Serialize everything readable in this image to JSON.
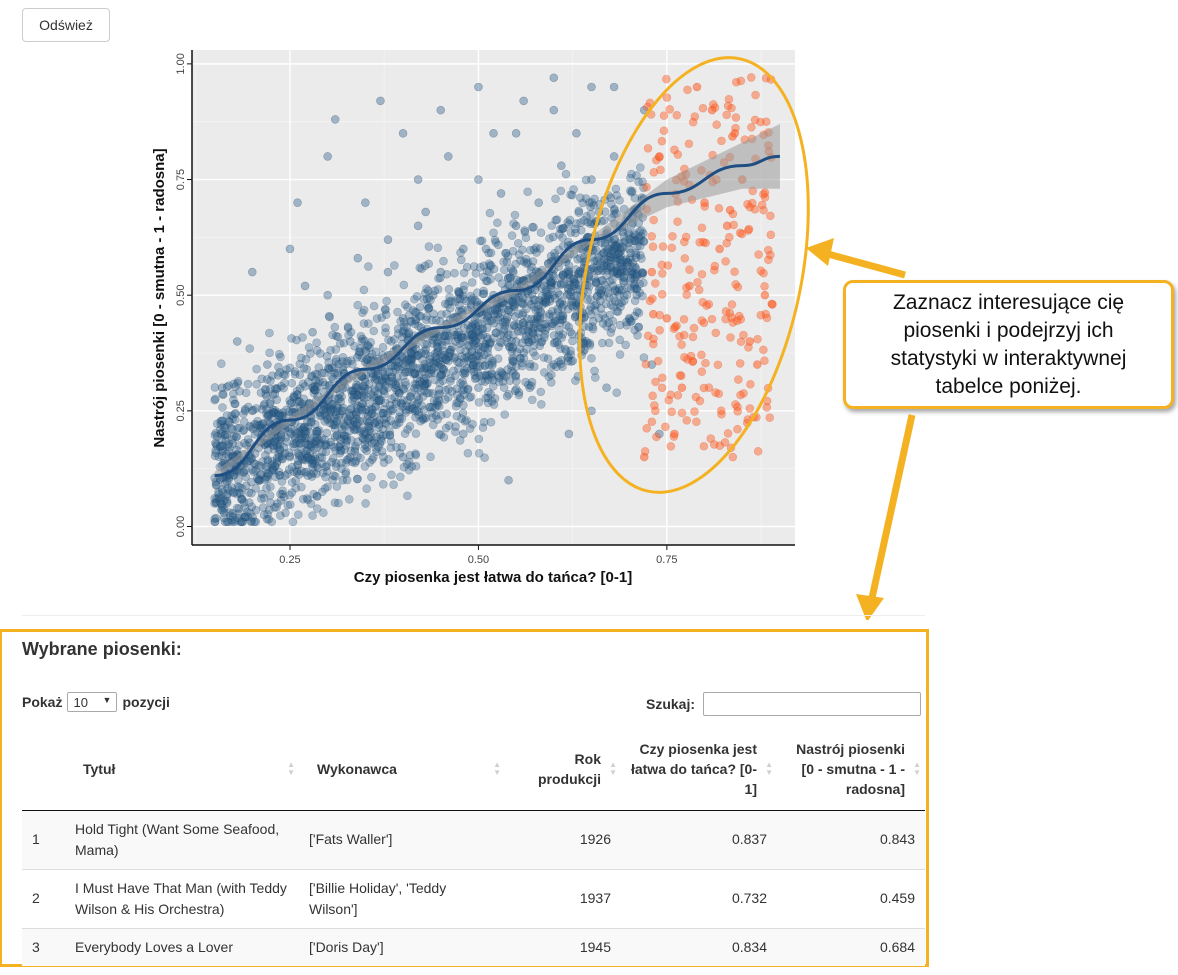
{
  "refresh_button": {
    "label": "Odśwież"
  },
  "callout": {
    "text": "Zaznacz interesujące cię piosenki i podejrzyj ich statystyki w interaktywnej tabelce poniżej."
  },
  "table_section": {
    "title": "Wybrane piosenki:",
    "length": {
      "label_before": "Pokaż",
      "value": "10",
      "label_after": "pozycji"
    },
    "search": {
      "label": "Szukaj:",
      "value": ""
    },
    "columns": [
      {
        "label": ""
      },
      {
        "label": "Tytuł"
      },
      {
        "label": "Wykonawca"
      },
      {
        "label": "Rok produkcji"
      },
      {
        "label": "Czy piosenka jest łatwa do tańca? [0-1]"
      },
      {
        "label": "Nastrój piosenki [0 - smutna - 1 - radosna]"
      }
    ],
    "rows": [
      {
        "idx": "1",
        "title": "Hold Tight (Want Some Seafood, Mama)",
        "artist": "['Fats Waller']",
        "year": "1926",
        "danceability": "0.837",
        "valence": "0.843"
      },
      {
        "idx": "2",
        "title": "I Must Have That Man (with Teddy Wilson & His Orchestra)",
        "artist": "['Billie Holiday', 'Teddy Wilson']",
        "year": "1937",
        "danceability": "0.732",
        "valence": "0.459"
      },
      {
        "idx": "3",
        "title": "Everybody Loves a Lover",
        "artist": "['Doris Day']",
        "year": "1945",
        "danceability": "0.834",
        "valence": "0.684"
      }
    ]
  },
  "colors": {
    "points": "#2c5f8a",
    "selected_points": "#ff5a1f",
    "trend": "#1f4e82",
    "highlight": "#f4b223",
    "panel": "#ebebeb"
  },
  "chart_data": {
    "type": "scatter",
    "xlabel": "Czy piosenka jest łatwa do tańca? [0-1]",
    "ylabel": "Nastrój piosenki [0 - smutna - 1 - radosna]",
    "xlim": [
      0.12,
      0.92
    ],
    "ylim": [
      -0.04,
      1.03
    ],
    "x_ticks": [
      0.25,
      0.5,
      0.75
    ],
    "x_tick_labels": [
      "0.25",
      "0.50",
      "0.75"
    ],
    "y_ticks": [
      0.0,
      0.25,
      0.5,
      0.75,
      1.0
    ],
    "y_tick_labels": [
      "0.00",
      "0.25",
      "0.50",
      "0.75",
      "1.00"
    ],
    "grid": true,
    "series": [
      {
        "role": "all songs",
        "x": [
          0.15,
          0.16,
          0.17,
          0.18,
          0.2,
          0.22,
          0.25,
          0.28,
          0.3,
          0.33,
          0.35,
          0.38,
          0.4,
          0.42,
          0.45,
          0.48,
          0.5,
          0.52,
          0.55,
          0.58,
          0.6,
          0.62,
          0.65,
          0.68,
          0.7,
          0.18,
          0.2,
          0.25,
          0.3,
          0.35,
          0.4,
          0.45,
          0.5,
          0.55,
          0.6,
          0.65,
          0.7,
          0.3,
          0.4,
          0.5,
          0.6,
          0.65,
          0.45,
          0.55,
          0.62,
          0.32,
          0.42,
          0.52,
          0.58,
          0.22,
          0.28,
          0.38,
          0.48,
          0.68,
          0.72,
          0.16,
          0.19,
          0.24,
          0.36,
          0.44,
          0.54,
          0.64,
          0.74,
          0.46,
          0.56,
          0.66,
          0.34,
          0.26,
          0.21,
          0.71,
          0.61,
          0.51,
          0.41,
          0.31,
          0.57,
          0.47,
          0.37,
          0.27,
          0.67,
          0.53,
          0.43,
          0.33,
          0.63,
          0.73
        ],
        "y": [
          0.05,
          0.08,
          0.03,
          0.12,
          0.25,
          0.35,
          0.15,
          0.3,
          0.5,
          0.4,
          0.2,
          0.55,
          0.45,
          0.65,
          0.35,
          0.6,
          0.75,
          0.5,
          0.85,
          0.7,
          0.9,
          0.55,
          0.95,
          0.8,
          0.6,
          0.4,
          0.55,
          0.6,
          0.25,
          0.7,
          0.85,
          0.9,
          0.3,
          0.4,
          0.35,
          0.75,
          0.45,
          0.8,
          0.15,
          0.95,
          0.97,
          0.25,
          0.55,
          0.65,
          0.2,
          0.1,
          0.75,
          0.85,
          0.55,
          0.18,
          0.42,
          0.62,
          0.2,
          0.95,
          0.9,
          0.3,
          0.02,
          0.07,
          0.33,
          0.5,
          0.1,
          0.45,
          0.2,
          0.8,
          0.92,
          0.68,
          0.58,
          0.7,
          0.1,
          0.5,
          0.78,
          0.6,
          0.28,
          0.88,
          0.48,
          0.4,
          0.92,
          0.52,
          0.3,
          0.72,
          0.68,
          0.15,
          0.85,
          0.35
        ]
      },
      {
        "role": "selected songs",
        "x": [
          0.73,
          0.75,
          0.77,
          0.8,
          0.82,
          0.84,
          0.86,
          0.88,
          0.74,
          0.79,
          0.83,
          0.87,
          0.76,
          0.81,
          0.85,
          0.78,
          0.72,
          0.89,
          0.837,
          0.732,
          0.834
        ],
        "y": [
          0.55,
          0.45,
          0.3,
          0.7,
          0.6,
          0.85,
          0.4,
          0.5,
          0.8,
          0.95,
          0.65,
          0.35,
          0.2,
          0.9,
          0.75,
          0.52,
          0.15,
          0.48,
          0.843,
          0.459,
          0.684
        ]
      }
    ],
    "trend_line": {
      "x": [
        0.15,
        0.25,
        0.35,
        0.45,
        0.55,
        0.65,
        0.75,
        0.85,
        0.9
      ],
      "y": [
        0.11,
        0.23,
        0.34,
        0.43,
        0.51,
        0.62,
        0.72,
        0.78,
        0.8
      ]
    }
  }
}
